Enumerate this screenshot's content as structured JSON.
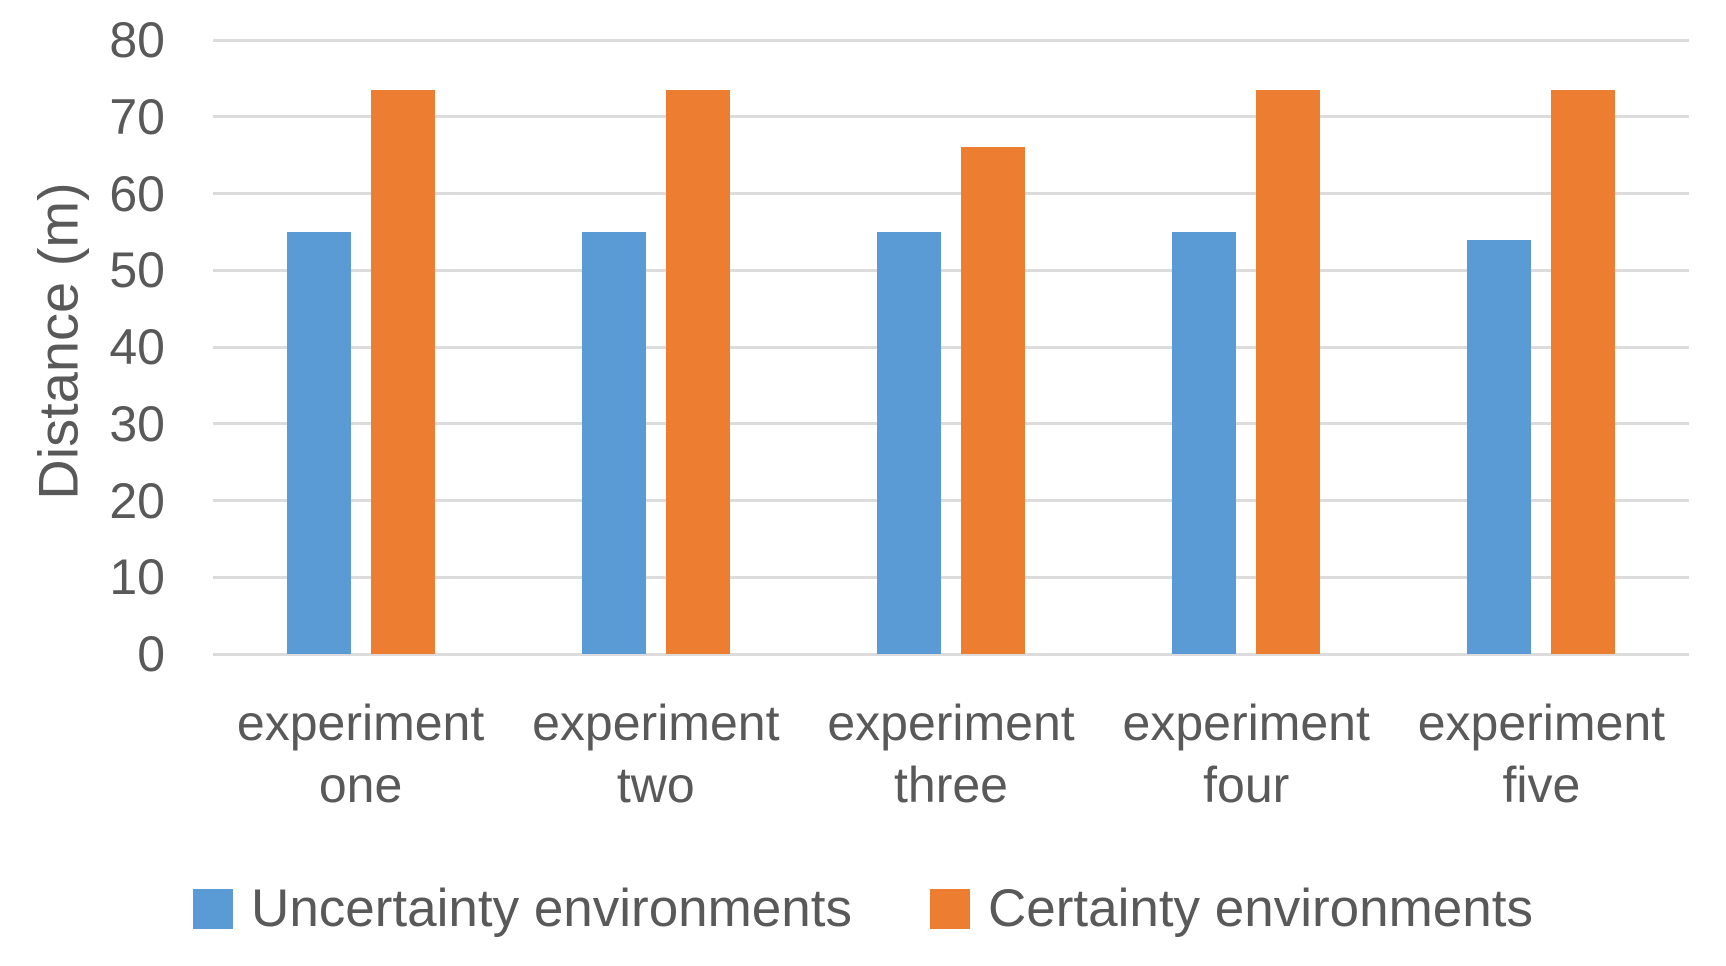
{
  "chart_data": {
    "type": "bar",
    "title": "",
    "xlabel": "",
    "ylabel": "Distance (m)",
    "categories": [
      "experiment one",
      "experiment two",
      "experiment three",
      "experiment four",
      "experiment five"
    ],
    "category_lines": [
      [
        "experiment",
        "one"
      ],
      [
        "experiment",
        "two"
      ],
      [
        "experiment",
        "three"
      ],
      [
        "experiment",
        "four"
      ],
      [
        "experiment",
        "five"
      ]
    ],
    "series": [
      {
        "name": "Uncertainty environments",
        "color": "#5B9BD5",
        "values": [
          55,
          55,
          55,
          55,
          54
        ]
      },
      {
        "name": "Certainty environments",
        "color": "#ED7D31",
        "values": [
          73.5,
          73.5,
          66,
          73.5,
          73.5
        ]
      }
    ],
    "ylim": [
      0,
      80
    ],
    "yticks": [
      0,
      10,
      20,
      30,
      40,
      50,
      60,
      70,
      80
    ],
    "grid": true,
    "legend_position": "bottom"
  },
  "colors": {
    "background": "#FFFFFF",
    "gridline": "#DCDCDC",
    "text": "#595959",
    "series_blue": "#5B9BD5",
    "series_orange": "#ED7D31"
  }
}
